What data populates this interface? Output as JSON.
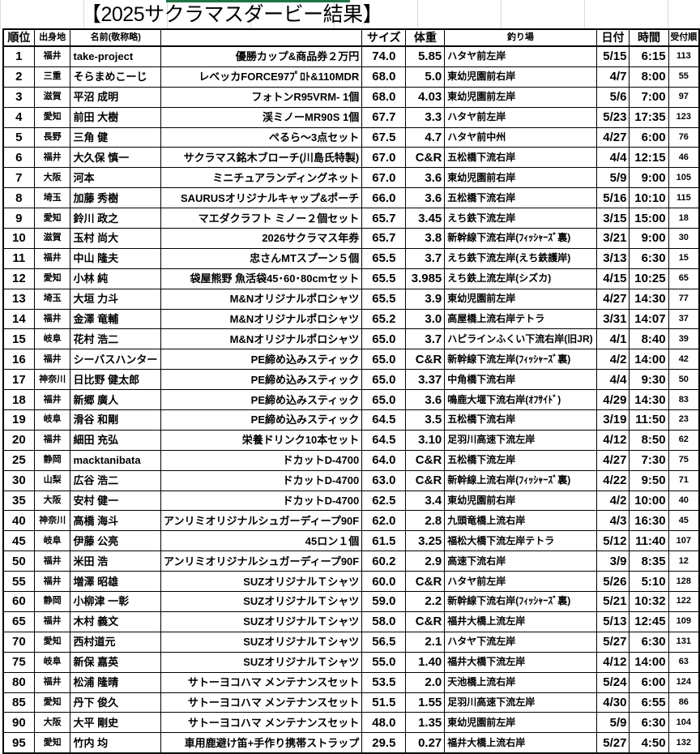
{
  "title": "【2025サクラマスダービー結果】",
  "colors": {
    "selection_bar": "#217346",
    "grid": "#d9d9d9"
  },
  "headers": {
    "rank": "順位",
    "pref": "出身地",
    "name": "名前(敬称略)",
    "prize": "",
    "size": "サイズ",
    "weight": "体重",
    "place": "釣り場",
    "date": "日付",
    "time": "時間",
    "order": "受付順"
  },
  "rows": [
    {
      "rank": "1",
      "pref": "福井",
      "name": "take-project",
      "prize": "優勝カップ&商品券２万円",
      "size": "74.0",
      "weight": "5.85",
      "place": "ハタヤ前左岸",
      "date": "5/15",
      "time": "6:15",
      "order": "113"
    },
    {
      "rank": "2",
      "pref": "三重",
      "name": "そらまめこーじ",
      "prize": "レベッカFORCE97ﾌﾟﾛﾄ&110MDR",
      "size": "68.0",
      "weight": "5.0",
      "place": "東幼児園前右岸",
      "date": "4/7",
      "time": "8:00",
      "order": "55"
    },
    {
      "rank": "3",
      "pref": "滋賀",
      "name": "平沼 成明",
      "prize": "フォトンR95VRM- 1個",
      "size": "68.0",
      "weight": "4.03",
      "place": "東幼児園前左岸",
      "date": "5/6",
      "time": "7:00",
      "order": "97"
    },
    {
      "rank": "4",
      "pref": "愛知",
      "name": "前田 大樹",
      "prize": "渓ミノーMR90S 1個",
      "size": "67.7",
      "weight": "3.3",
      "place": "ハタヤ前左岸",
      "date": "5/23",
      "time": "17:35",
      "order": "123"
    },
    {
      "rank": "5",
      "pref": "長野",
      "name": "三角 健",
      "prize": "ぺるら～3点セット",
      "size": "67.5",
      "weight": "4.7",
      "place": "ハタヤ前中州",
      "date": "4/27",
      "time": "6:00",
      "order": "76"
    },
    {
      "rank": "6",
      "pref": "福井",
      "name": "大久保 慎一",
      "prize": "サクラマス銘木ブローチ(川島氏特製)",
      "size": "67.0",
      "weight": "C&R",
      "place": "五松橋下流右岸",
      "date": "4/4",
      "time": "12:15",
      "order": "46"
    },
    {
      "rank": "7",
      "pref": "大阪",
      "name": "河本",
      "prize": "ミニチュアランディングネット",
      "size": "67.0",
      "weight": "3.6",
      "place": "東幼児園前右岸",
      "date": "5/9",
      "time": "9:00",
      "order": "105"
    },
    {
      "rank": "8",
      "pref": "埼玉",
      "name": "加藤 秀樹",
      "prize": "SAURUSオリジナルキャップ&ポーチ",
      "size": "66.0",
      "weight": "3.6",
      "place": "五松橋下流右岸",
      "date": "5/16",
      "time": "10:10",
      "order": "115"
    },
    {
      "rank": "9",
      "pref": "愛知",
      "name": "鈴川 政之",
      "prize": "マエダクラフト ミノー２個セット",
      "size": "65.7",
      "weight": "3.45",
      "place": "えち鉄下流左岸",
      "date": "3/15",
      "time": "15:00",
      "order": "18"
    },
    {
      "rank": "10",
      "pref": "滋賀",
      "name": "玉村 尚大",
      "prize": "2026サクラマス年券",
      "size": "65.7",
      "weight": "3.8",
      "place": "新幹線下流右岸(ﾌｨｯｼｬｰｽﾞ裏)",
      "date": "3/21",
      "time": "9:00",
      "order": "30"
    },
    {
      "rank": "11",
      "pref": "福井",
      "name": "中山 隆夫",
      "prize": "忠さんMTスプーン５個",
      "size": "65.5",
      "weight": "3.7",
      "place": "えち鉄下流左岸(えち鉄護岸)",
      "date": "3/13",
      "time": "6:30",
      "order": "15"
    },
    {
      "rank": "12",
      "pref": "愛知",
      "name": "小林 純",
      "prize": "袋屋熊野 魚活袋45･60･80cmセット",
      "size": "65.5",
      "weight": "3.985",
      "place": "えち鉄上流左岸(シズカ)",
      "date": "4/15",
      "time": "10:25",
      "order": "65"
    },
    {
      "rank": "13",
      "pref": "埼玉",
      "name": "大垣 力斗",
      "prize": "M&Nオリジナルポロシャツ",
      "size": "65.5",
      "weight": "3.9",
      "place": "東幼児園前左岸",
      "date": "4/27",
      "time": "14:30",
      "order": "77"
    },
    {
      "rank": "14",
      "pref": "福井",
      "name": "金澤 竜輔",
      "prize": "M&Nオリジナルポロシャツ",
      "size": "65.2",
      "weight": "3.0",
      "place": "高屋橋上流右岸テトラ",
      "date": "3/31",
      "time": "14:07",
      "order": "37"
    },
    {
      "rank": "15",
      "pref": "岐阜",
      "name": "花村 浩二",
      "prize": "M&Nオリジナルポロシャツ",
      "size": "65.0",
      "weight": "3.7",
      "place": "ハピラインふくい下流右岸(旧JR)",
      "date": "4/1",
      "time": "8:40",
      "order": "39"
    },
    {
      "rank": "16",
      "pref": "福井",
      "name": "シーバスハンター",
      "prize": "PE締め込みスティック",
      "size": "65.0",
      "weight": "C&R",
      "place": "新幹線下流左岸(ﾌｨｯｼｬｰｽﾞ裏)",
      "date": "4/2",
      "time": "14:00",
      "order": "42"
    },
    {
      "rank": "17",
      "pref": "神奈川",
      "name": "日比野 健太郎",
      "prize": "PE締め込みスティック",
      "size": "65.0",
      "weight": "3.37",
      "place": "中角橋下流右岸",
      "date": "4/4",
      "time": "9:30",
      "order": "50"
    },
    {
      "rank": "18",
      "pref": "福井",
      "name": "新郷 廣人",
      "prize": "PE締め込みスティック",
      "size": "65.0",
      "weight": "3.6",
      "place": "鳴鹿大堰下流右岸(ｵﾌｻｲﾄﾞ)",
      "date": "4/29",
      "time": "14:30",
      "order": "83"
    },
    {
      "rank": "19",
      "pref": "岐阜",
      "name": "滑谷 和剛",
      "prize": "PE締め込みスティック",
      "size": "64.5",
      "weight": "3.5",
      "place": "五松橋下流右岸",
      "date": "3/19",
      "time": "11:50",
      "order": "23"
    },
    {
      "rank": "20",
      "pref": "福井",
      "name": "細田 充弘",
      "prize": "栄養ドリンク10本セット",
      "size": "64.5",
      "weight": "3.10",
      "place": "足羽川高速下流左岸",
      "date": "4/12",
      "time": "8:50",
      "order": "62"
    },
    {
      "rank": "25",
      "pref": "静岡",
      "name": "macktanibata",
      "prize": "ドカットD-4700",
      "size": "64.0",
      "weight": "C&R",
      "place": "五松橋下流左岸",
      "date": "4/27",
      "time": "7:30",
      "order": "75"
    },
    {
      "rank": "30",
      "pref": "山梨",
      "name": "広谷 浩二",
      "prize": "ドカットD-4700",
      "size": "63.0",
      "weight": "C&R",
      "place": "新幹線上流右岸(ﾌｨｯｼｬｰｽﾞ裏)",
      "date": "4/22",
      "time": "9:50",
      "order": "71"
    },
    {
      "rank": "35",
      "pref": "大阪",
      "name": "安村 健一",
      "prize": "ドカットD-4700",
      "size": "62.5",
      "weight": "3.4",
      "place": "東幼児園前右岸",
      "date": "4/2",
      "time": "10:00",
      "order": "40"
    },
    {
      "rank": "40",
      "pref": "神奈川",
      "name": "高橋 海斗",
      "prize": "アンリミオリジナルシュガーディープ90F",
      "size": "62.0",
      "weight": "2.8",
      "place": "九頭竜橋上流右岸",
      "date": "4/3",
      "time": "16:30",
      "order": "45"
    },
    {
      "rank": "45",
      "pref": "岐阜",
      "name": "伊藤 公亮",
      "prize": "45ロン１個",
      "size": "61.5",
      "weight": "3.25",
      "place": "福松大橋下流左岸テトラ",
      "date": "5/12",
      "time": "11:40",
      "order": "107"
    },
    {
      "rank": "50",
      "pref": "福井",
      "name": "米田 浩",
      "prize": "アンリミオリジナルシュガーディープ90F",
      "size": "60.2",
      "weight": "2.9",
      "place": "高速下流右岸",
      "date": "3/9",
      "time": "8:35",
      "order": "12"
    },
    {
      "rank": "55",
      "pref": "福井",
      "name": "増澤 昭雄",
      "prize": "SUZオリジナルＴシャツ",
      "size": "60.0",
      "weight": "C&R",
      "place": "ハタヤ前左岸",
      "date": "5/26",
      "time": "5:10",
      "order": "128"
    },
    {
      "rank": "60",
      "pref": "静岡",
      "name": "小柳津 一彰",
      "prize": "SUZオリジナルＴシャツ",
      "size": "59.0",
      "weight": "2.2",
      "place": "新幹線下流右岸(ﾌｨｯｼｬｰｽﾞ裏)",
      "date": "5/21",
      "time": "10:32",
      "order": "122"
    },
    {
      "rank": "65",
      "pref": "福井",
      "name": "木村 義文",
      "prize": "SUZオリジナルＴシャツ",
      "size": "58.0",
      "weight": "C&R",
      "place": "福井大橋上流左岸",
      "date": "5/13",
      "time": "12:45",
      "order": "109"
    },
    {
      "rank": "70",
      "pref": "愛知",
      "name": "西村道元",
      "prize": "SUZオリジナルＴシャツ",
      "size": "56.5",
      "weight": "2.1",
      "place": "ハタヤ下流左岸",
      "date": "5/27",
      "time": "6:30",
      "order": "131"
    },
    {
      "rank": "75",
      "pref": "岐阜",
      "name": "新保 嘉英",
      "prize": "SUZオリジナルＴシャツ",
      "size": "55.0",
      "weight": "1.40",
      "place": "福井大橋下流左岸",
      "date": "4/12",
      "time": "14:00",
      "order": "63"
    },
    {
      "rank": "80",
      "pref": "福井",
      "name": "松浦 隆晴",
      "prize": "サトーヨコハマ メンテナンスセット",
      "size": "53.5",
      "weight": "2.0",
      "place": "天池橋上流右岸",
      "date": "5/24",
      "time": "6:00",
      "order": "124"
    },
    {
      "rank": "85",
      "pref": "愛知",
      "name": "丹下 俊久",
      "prize": "サトーヨコハマ メンテナンスセット",
      "size": "51.5",
      "weight": "1.55",
      "place": "足羽川高速下流左岸",
      "date": "4/30",
      "time": "6:55",
      "order": "86"
    },
    {
      "rank": "90",
      "pref": "大阪",
      "name": "大平 剛史",
      "prize": "サトーヨコハマ メンテナンスセット",
      "size": "48.0",
      "weight": "1.35",
      "place": "東幼児園前左岸",
      "date": "5/9",
      "time": "6:30",
      "order": "104"
    },
    {
      "rank": "95",
      "pref": "愛知",
      "name": "竹内 均",
      "prize": "車用鹿避け笛+手作り携帯ストラップ",
      "size": "29.5",
      "weight": "0.27",
      "place": "福井大橋上流右岸",
      "date": "5/27",
      "time": "4:50",
      "order": "132"
    }
  ]
}
